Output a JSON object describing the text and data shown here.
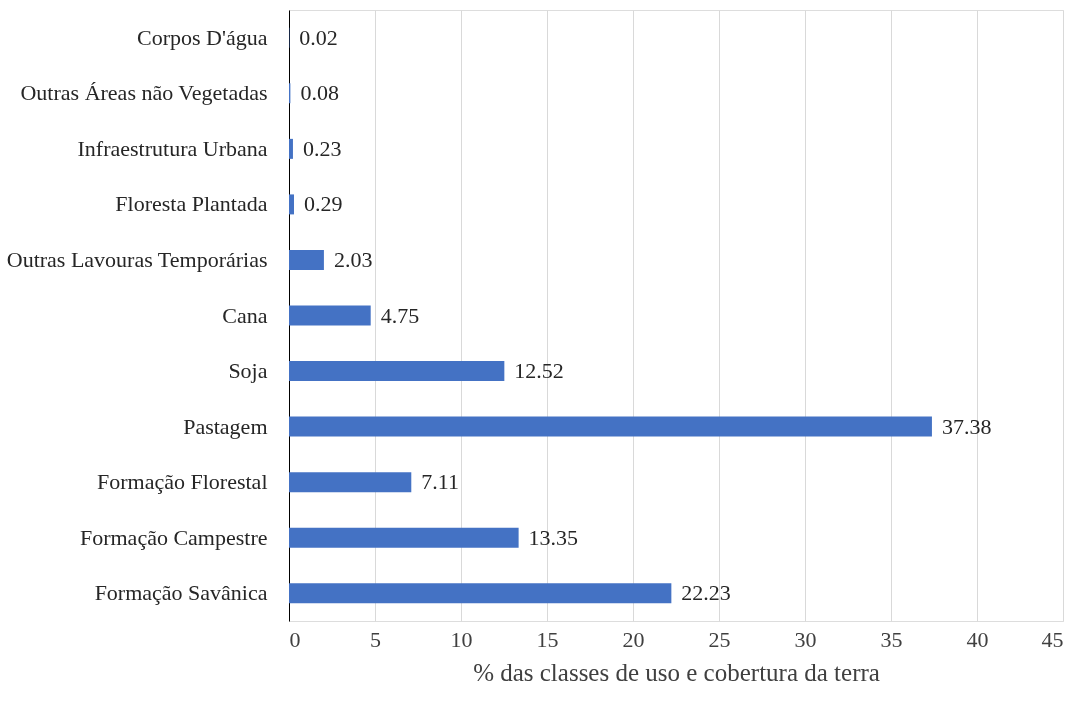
{
  "chart_data": {
    "type": "bar",
    "orientation": "horizontal",
    "xlabel": "% das classes de uso e cobertura da terra",
    "categories": [
      "Corpos D'água",
      "Outras Áreas não Vegetadas",
      "Infraestrutura Urbana",
      "Floresta Plantada",
      "Outras Lavouras Temporárias",
      "Cana",
      "Soja",
      "Pastagem",
      "Formação Florestal",
      "Formação Campestre",
      "Formação Savânica"
    ],
    "values": [
      0.02,
      0.08,
      0.23,
      0.29,
      2.03,
      4.75,
      12.52,
      37.38,
      7.11,
      13.35,
      22.23
    ],
    "color": "#4472c4",
    "xlim": [
      0,
      45
    ],
    "xticks": [
      0,
      5,
      10,
      15,
      20,
      25,
      30,
      35,
      40,
      45
    ],
    "grid": "x",
    "data_labels": true
  }
}
